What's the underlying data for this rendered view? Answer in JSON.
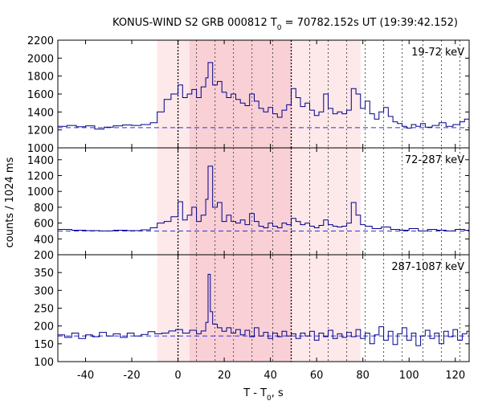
{
  "chart_data": {
    "type": "line",
    "title": {
      "prefix": "KONUS-WIND S2 GRB 000812 T",
      "sub": "0",
      "suffix": " = 70782.152s UT (19:39:42.152)"
    },
    "xlabel": {
      "prefix": "T - T",
      "sub": "0",
      "suffix": ", s"
    },
    "ylabel": "counts / 1024 ms",
    "xlim": [
      -52,
      126
    ],
    "x_ticks": [
      -40,
      -20,
      0,
      20,
      40,
      60,
      80,
      100,
      120
    ],
    "x_tick_labels": [
      "-40",
      "-20",
      "0",
      "20",
      "40",
      "60",
      "80",
      "100",
      "120"
    ],
    "shaded_regions": [
      {
        "x0": -9,
        "x1": 79,
        "color": "#fde8ea"
      },
      {
        "x0": 5,
        "x1": 49,
        "color": "#f9d0d6"
      }
    ],
    "vertical_lines_dotted_dark": [
      0,
      49
    ],
    "vertical_lines_dotted_gray": [
      8,
      16,
      24,
      32,
      41,
      57,
      65,
      73,
      81,
      89,
      97,
      106,
      114,
      122
    ],
    "line_color": "#00008b",
    "baseline_color": "#3333cc",
    "panels": [
      {
        "band_label": "19-72 keV",
        "ylim": [
          1000,
          2200
        ],
        "y_ticks": [
          1000,
          1200,
          1400,
          1600,
          1800,
          2000,
          2200
        ],
        "y_tick_labels": [
          "1000",
          "1200",
          "1400",
          "1600",
          "1800",
          "2000",
          "2200"
        ],
        "background": 1225,
        "series": [
          {
            "x": -52,
            "y": 1240
          },
          {
            "x": -48,
            "y": 1250
          },
          {
            "x": -44,
            "y": 1235
          },
          {
            "x": -40,
            "y": 1245
          },
          {
            "x": -36,
            "y": 1210
          },
          {
            "x": -32,
            "y": 1230
          },
          {
            "x": -28,
            "y": 1245
          },
          {
            "x": -24,
            "y": 1255
          },
          {
            "x": -20,
            "y": 1250
          },
          {
            "x": -16,
            "y": 1260
          },
          {
            "x": -12,
            "y": 1280
          },
          {
            "x": -9,
            "y": 1400
          },
          {
            "x": -6,
            "y": 1540
          },
          {
            "x": -3,
            "y": 1600
          },
          {
            "x": 0,
            "y": 1700
          },
          {
            "x": 2,
            "y": 1560
          },
          {
            "x": 4,
            "y": 1600
          },
          {
            "x": 6,
            "y": 1650
          },
          {
            "x": 8,
            "y": 1560
          },
          {
            "x": 10,
            "y": 1680
          },
          {
            "x": 12,
            "y": 1780
          },
          {
            "x": 13,
            "y": 1950
          },
          {
            "x": 15,
            "y": 1700
          },
          {
            "x": 17,
            "y": 1740
          },
          {
            "x": 19,
            "y": 1620
          },
          {
            "x": 21,
            "y": 1560
          },
          {
            "x": 23,
            "y": 1600
          },
          {
            "x": 25,
            "y": 1540
          },
          {
            "x": 27,
            "y": 1500
          },
          {
            "x": 29,
            "y": 1470
          },
          {
            "x": 31,
            "y": 1600
          },
          {
            "x": 33,
            "y": 1520
          },
          {
            "x": 35,
            "y": 1440
          },
          {
            "x": 37,
            "y": 1400
          },
          {
            "x": 39,
            "y": 1450
          },
          {
            "x": 41,
            "y": 1380
          },
          {
            "x": 43,
            "y": 1340
          },
          {
            "x": 45,
            "y": 1420
          },
          {
            "x": 47,
            "y": 1480
          },
          {
            "x": 49,
            "y": 1660
          },
          {
            "x": 51,
            "y": 1560
          },
          {
            "x": 53,
            "y": 1460
          },
          {
            "x": 55,
            "y": 1500
          },
          {
            "x": 57,
            "y": 1420
          },
          {
            "x": 59,
            "y": 1360
          },
          {
            "x": 61,
            "y": 1400
          },
          {
            "x": 63,
            "y": 1600
          },
          {
            "x": 65,
            "y": 1440
          },
          {
            "x": 67,
            "y": 1380
          },
          {
            "x": 69,
            "y": 1400
          },
          {
            "x": 71,
            "y": 1380
          },
          {
            "x": 73,
            "y": 1420
          },
          {
            "x": 75,
            "y": 1660
          },
          {
            "x": 77,
            "y": 1600
          },
          {
            "x": 79,
            "y": 1440
          },
          {
            "x": 81,
            "y": 1520
          },
          {
            "x": 83,
            "y": 1380
          },
          {
            "x": 85,
            "y": 1320
          },
          {
            "x": 87,
            "y": 1400
          },
          {
            "x": 89,
            "y": 1450
          },
          {
            "x": 91,
            "y": 1350
          },
          {
            "x": 93,
            "y": 1290
          },
          {
            "x": 95,
            "y": 1270
          },
          {
            "x": 97,
            "y": 1240
          },
          {
            "x": 99,
            "y": 1220
          },
          {
            "x": 101,
            "y": 1260
          },
          {
            "x": 103,
            "y": 1240
          },
          {
            "x": 105,
            "y": 1270
          },
          {
            "x": 107,
            "y": 1230
          },
          {
            "x": 110,
            "y": 1250
          },
          {
            "x": 113,
            "y": 1280
          },
          {
            "x": 116,
            "y": 1240
          },
          {
            "x": 119,
            "y": 1260
          },
          {
            "x": 122,
            "y": 1290
          },
          {
            "x": 124,
            "y": 1320
          },
          {
            "x": 126,
            "y": 1300
          }
        ]
      },
      {
        "band_label": "72-287 keV",
        "ylim": [
          200,
          1550
        ],
        "y_ticks": [
          200,
          400,
          600,
          800,
          1000,
          1200,
          1400
        ],
        "y_tick_labels": [
          "200",
          "400",
          "600",
          "800",
          "1000",
          "1200",
          "1400"
        ],
        "background": 500,
        "series": [
          {
            "x": -52,
            "y": 520
          },
          {
            "x": -46,
            "y": 510
          },
          {
            "x": -40,
            "y": 505
          },
          {
            "x": -34,
            "y": 500
          },
          {
            "x": -28,
            "y": 510
          },
          {
            "x": -22,
            "y": 505
          },
          {
            "x": -16,
            "y": 515
          },
          {
            "x": -12,
            "y": 540
          },
          {
            "x": -9,
            "y": 600
          },
          {
            "x": -6,
            "y": 620
          },
          {
            "x": -3,
            "y": 680
          },
          {
            "x": 0,
            "y": 870
          },
          {
            "x": 2,
            "y": 640
          },
          {
            "x": 4,
            "y": 700
          },
          {
            "x": 6,
            "y": 800
          },
          {
            "x": 8,
            "y": 620
          },
          {
            "x": 10,
            "y": 700
          },
          {
            "x": 12,
            "y": 900
          },
          {
            "x": 13,
            "y": 1320
          },
          {
            "x": 15,
            "y": 800
          },
          {
            "x": 17,
            "y": 860
          },
          {
            "x": 19,
            "y": 620
          },
          {
            "x": 21,
            "y": 700
          },
          {
            "x": 23,
            "y": 620
          },
          {
            "x": 25,
            "y": 600
          },
          {
            "x": 27,
            "y": 640
          },
          {
            "x": 29,
            "y": 580
          },
          {
            "x": 31,
            "y": 720
          },
          {
            "x": 33,
            "y": 620
          },
          {
            "x": 35,
            "y": 560
          },
          {
            "x": 37,
            "y": 540
          },
          {
            "x": 39,
            "y": 600
          },
          {
            "x": 41,
            "y": 560
          },
          {
            "x": 43,
            "y": 540
          },
          {
            "x": 45,
            "y": 600
          },
          {
            "x": 47,
            "y": 580
          },
          {
            "x": 49,
            "y": 660
          },
          {
            "x": 51,
            "y": 620
          },
          {
            "x": 53,
            "y": 580
          },
          {
            "x": 55,
            "y": 600
          },
          {
            "x": 57,
            "y": 560
          },
          {
            "x": 59,
            "y": 540
          },
          {
            "x": 61,
            "y": 570
          },
          {
            "x": 63,
            "y": 640
          },
          {
            "x": 65,
            "y": 580
          },
          {
            "x": 67,
            "y": 560
          },
          {
            "x": 69,
            "y": 550
          },
          {
            "x": 71,
            "y": 560
          },
          {
            "x": 73,
            "y": 600
          },
          {
            "x": 75,
            "y": 860
          },
          {
            "x": 77,
            "y": 700
          },
          {
            "x": 79,
            "y": 580
          },
          {
            "x": 81,
            "y": 560
          },
          {
            "x": 84,
            "y": 530
          },
          {
            "x": 88,
            "y": 550
          },
          {
            "x": 92,
            "y": 520
          },
          {
            "x": 96,
            "y": 510
          },
          {
            "x": 100,
            "y": 530
          },
          {
            "x": 104,
            "y": 500
          },
          {
            "x": 108,
            "y": 520
          },
          {
            "x": 112,
            "y": 510
          },
          {
            "x": 116,
            "y": 500
          },
          {
            "x": 120,
            "y": 520
          },
          {
            "x": 124,
            "y": 510
          },
          {
            "x": 126,
            "y": 500
          }
        ]
      },
      {
        "band_label": "287-1087 keV",
        "ylim": [
          100,
          400
        ],
        "y_ticks": [
          100,
          150,
          200,
          250,
          300,
          350
        ],
        "y_tick_labels": [
          "100",
          "150",
          "200",
          "250",
          "300",
          "350"
        ],
        "background": 172,
        "series": [
          {
            "x": -52,
            "y": 175
          },
          {
            "x": -49,
            "y": 168
          },
          {
            "x": -46,
            "y": 180
          },
          {
            "x": -43,
            "y": 165
          },
          {
            "x": -40,
            "y": 175
          },
          {
            "x": -37,
            "y": 170
          },
          {
            "x": -34,
            "y": 182
          },
          {
            "x": -31,
            "y": 172
          },
          {
            "x": -28,
            "y": 178
          },
          {
            "x": -25,
            "y": 168
          },
          {
            "x": -22,
            "y": 180
          },
          {
            "x": -19,
            "y": 172
          },
          {
            "x": -16,
            "y": 176
          },
          {
            "x": -13,
            "y": 184
          },
          {
            "x": -10,
            "y": 178
          },
          {
            "x": -7,
            "y": 180
          },
          {
            "x": -4,
            "y": 186
          },
          {
            "x": -1,
            "y": 190
          },
          {
            "x": 2,
            "y": 180
          },
          {
            "x": 5,
            "y": 188
          },
          {
            "x": 8,
            "y": 178
          },
          {
            "x": 10,
            "y": 186
          },
          {
            "x": 12,
            "y": 210
          },
          {
            "x": 13,
            "y": 345
          },
          {
            "x": 14,
            "y": 240
          },
          {
            "x": 15,
            "y": 205
          },
          {
            "x": 17,
            "y": 195
          },
          {
            "x": 19,
            "y": 185
          },
          {
            "x": 21,
            "y": 195
          },
          {
            "x": 23,
            "y": 180
          },
          {
            "x": 25,
            "y": 190
          },
          {
            "x": 27,
            "y": 175
          },
          {
            "x": 29,
            "y": 188
          },
          {
            "x": 31,
            "y": 170
          },
          {
            "x": 33,
            "y": 195
          },
          {
            "x": 35,
            "y": 172
          },
          {
            "x": 37,
            "y": 182
          },
          {
            "x": 39,
            "y": 165
          },
          {
            "x": 41,
            "y": 180
          },
          {
            "x": 43,
            "y": 170
          },
          {
            "x": 45,
            "y": 185
          },
          {
            "x": 47,
            "y": 172
          },
          {
            "x": 49,
            "y": 178
          },
          {
            "x": 51,
            "y": 165
          },
          {
            "x": 53,
            "y": 180
          },
          {
            "x": 55,
            "y": 172
          },
          {
            "x": 57,
            "y": 185
          },
          {
            "x": 59,
            "y": 160
          },
          {
            "x": 61,
            "y": 180
          },
          {
            "x": 63,
            "y": 170
          },
          {
            "x": 65,
            "y": 188
          },
          {
            "x": 67,
            "y": 165
          },
          {
            "x": 69,
            "y": 178
          },
          {
            "x": 71,
            "y": 168
          },
          {
            "x": 73,
            "y": 182
          },
          {
            "x": 75,
            "y": 170
          },
          {
            "x": 77,
            "y": 190
          },
          {
            "x": 79,
            "y": 165
          },
          {
            "x": 81,
            "y": 180
          },
          {
            "x": 83,
            "y": 150
          },
          {
            "x": 85,
            "y": 175
          },
          {
            "x": 87,
            "y": 198
          },
          {
            "x": 89,
            "y": 160
          },
          {
            "x": 91,
            "y": 185
          },
          {
            "x": 93,
            "y": 148
          },
          {
            "x": 95,
            "y": 178
          },
          {
            "x": 97,
            "y": 195
          },
          {
            "x": 99,
            "y": 160
          },
          {
            "x": 101,
            "y": 180
          },
          {
            "x": 103,
            "y": 145
          },
          {
            "x": 105,
            "y": 172
          },
          {
            "x": 107,
            "y": 188
          },
          {
            "x": 109,
            "y": 165
          },
          {
            "x": 111,
            "y": 180
          },
          {
            "x": 113,
            "y": 150
          },
          {
            "x": 115,
            "y": 185
          },
          {
            "x": 117,
            "y": 170
          },
          {
            "x": 119,
            "y": 190
          },
          {
            "x": 121,
            "y": 160
          },
          {
            "x": 123,
            "y": 178
          },
          {
            "x": 125,
            "y": 185
          },
          {
            "x": 126,
            "y": 180
          }
        ]
      }
    ]
  }
}
